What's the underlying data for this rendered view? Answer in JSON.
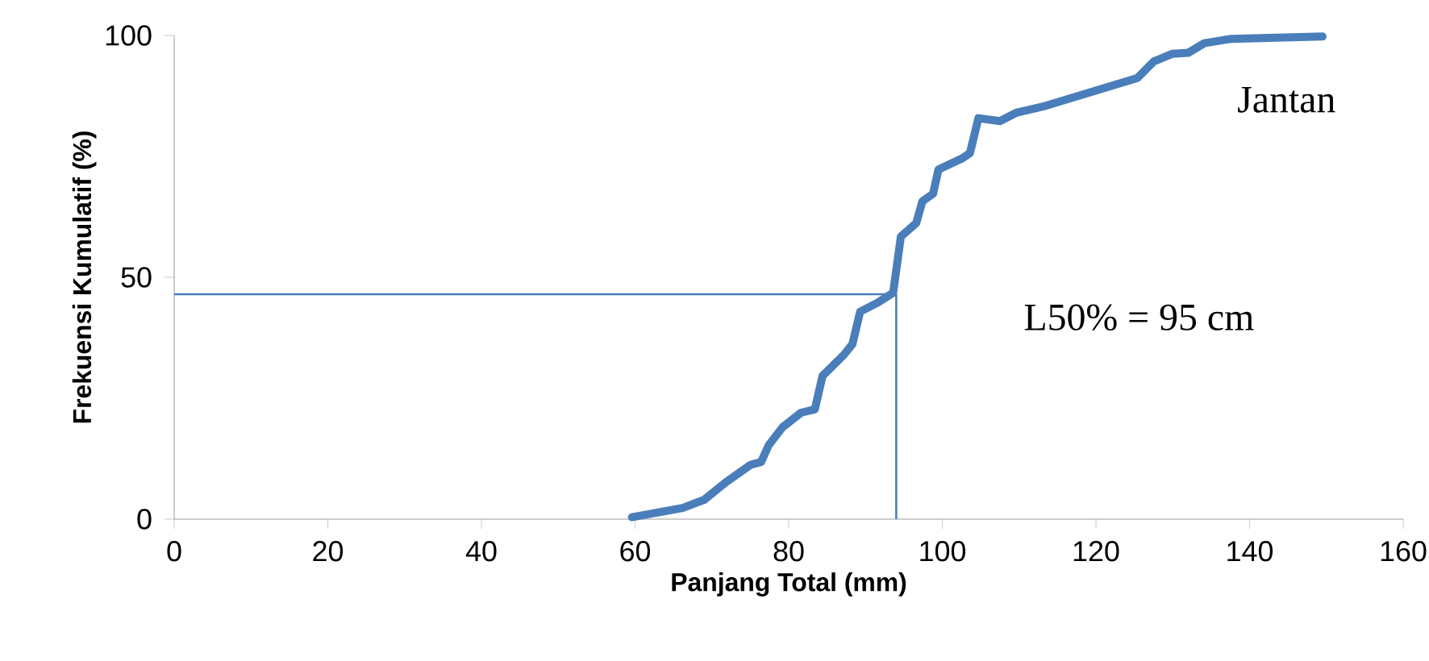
{
  "chart_data": {
    "type": "line",
    "xlabel": "Panjang Total (mm)",
    "ylabel": "Frekuensi Kumulatif (%)",
    "xlim": [
      0,
      160
    ],
    "xticks": [
      0,
      20,
      40,
      60,
      80,
      100,
      120,
      140,
      160
    ],
    "ylim": [
      0,
      100
    ],
    "yticks": [
      0,
      50,
      100
    ],
    "grid": false,
    "marker": "none",
    "line_style": "solid",
    "series": [
      {
        "color": "#4a7ebb",
        "x": [
          59.6,
          66.2,
          69.0,
          71.8,
          75.0,
          76.4,
          77.4,
          79.2,
          81.6,
          83.4,
          84.4,
          87.2,
          88.3,
          89.3,
          91.4,
          93.6,
          94.6,
          96.6,
          97.4,
          98.8,
          99.5,
          102.6,
          103.6,
          104.7,
          107.5,
          109.6,
          113.1,
          125.4,
          127.5,
          129.9,
          132.0,
          134.1,
          137.6,
          149.5
        ],
        "values": [
          0.4,
          2.3,
          4.0,
          7.6,
          11.2,
          11.8,
          15.3,
          19.0,
          22.0,
          22.7,
          29.6,
          34.0,
          36.2,
          42.9,
          44.6,
          46.8,
          58.4,
          61.2,
          65.7,
          67.3,
          72.3,
          74.6,
          75.7,
          82.9,
          82.3,
          84.0,
          85.3,
          91.2,
          94.6,
          96.2,
          96.4,
          98.4,
          99.3,
          99.8
        ]
      }
    ],
    "ref_lines": [
      {
        "axis": "y",
        "value": 46.5,
        "color": "#4a7ebb"
      },
      {
        "axis": "x",
        "value": 94,
        "color": "#4a7ebb"
      }
    ],
    "annotations": [
      "Jantan",
      "L50% = 95 cm"
    ]
  }
}
